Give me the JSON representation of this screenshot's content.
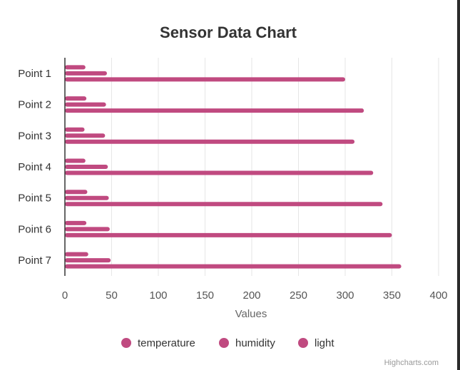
{
  "chart_data": {
    "type": "bar",
    "orientation": "horizontal",
    "title": "Sensor Data Chart",
    "categories": [
      "Point 1",
      "Point 2",
      "Point 3",
      "Point 4",
      "Point 5",
      "Point 6",
      "Point 7"
    ],
    "series": [
      {
        "name": "temperature",
        "values": [
          22,
          23,
          21,
          22,
          24,
          23,
          25
        ],
        "color": "#c04a80"
      },
      {
        "name": "humidity",
        "values": [
          45,
          44,
          43,
          46,
          47,
          48,
          49
        ],
        "color": "#c04a80"
      },
      {
        "name": "light",
        "values": [
          300,
          320,
          310,
          330,
          340,
          350,
          360
        ],
        "color": "#c04a80"
      }
    ],
    "xlabel": "Values",
    "ylabel": "",
    "xlim": [
      0,
      400
    ],
    "ticks": [
      0,
      50,
      100,
      150,
      200,
      250,
      300,
      350,
      400
    ],
    "grid": true,
    "legend_position": "bottom-center",
    "credits": "Highcharts.com"
  }
}
